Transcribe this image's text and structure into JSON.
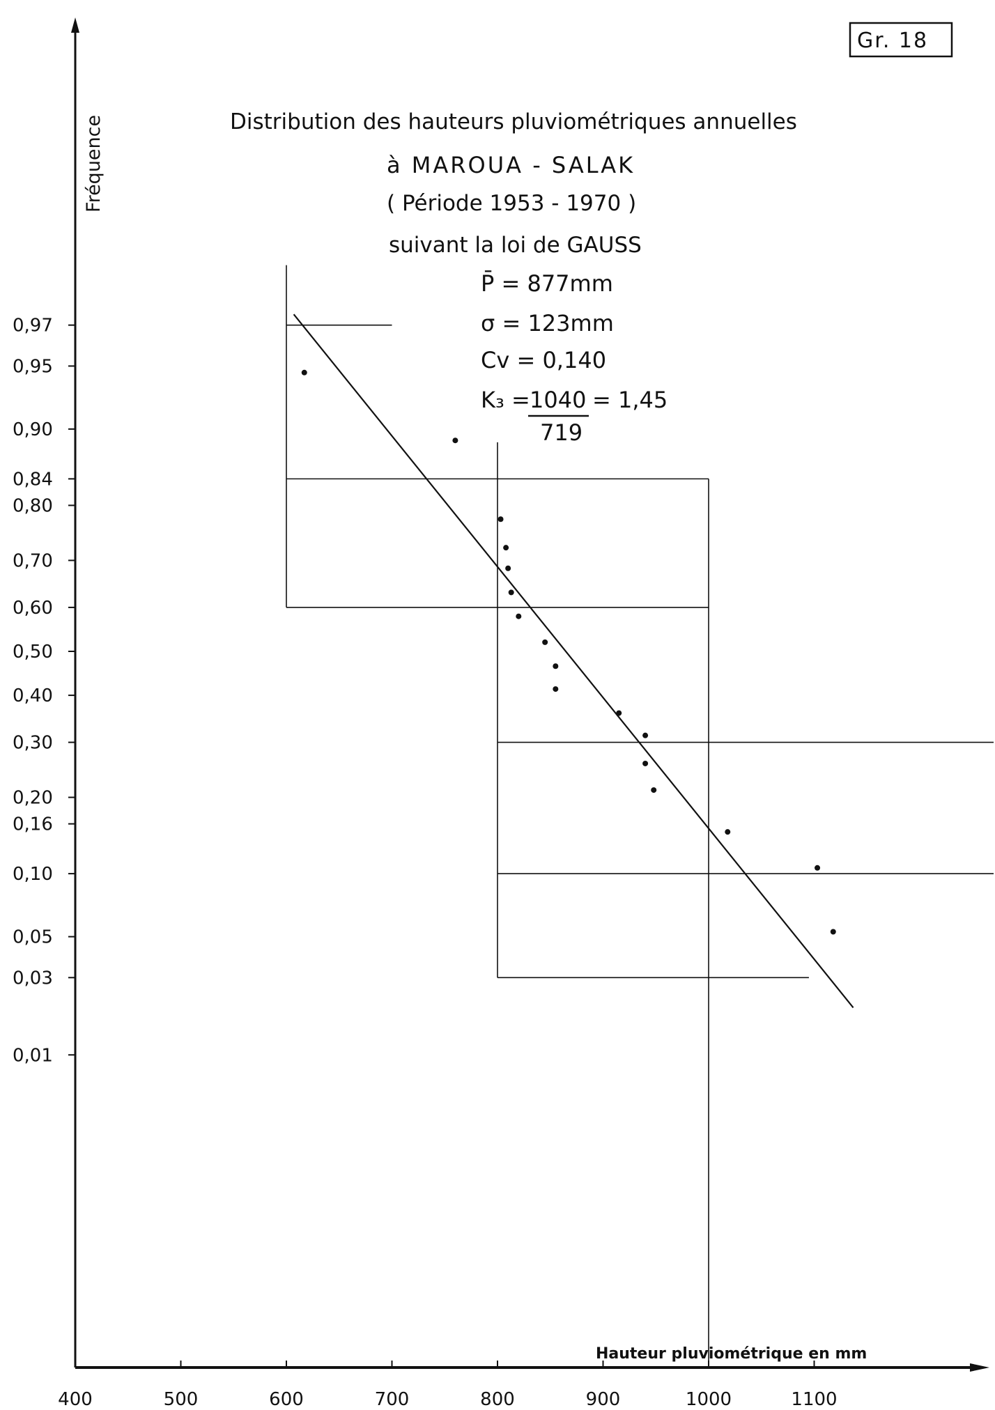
{
  "stamp": "Gr. 18",
  "chart_data": {
    "type": "scatter",
    "title_lines": [
      "Distribution des hauteurs pluviométriques annuelles",
      "à MAROUA - SALAK",
      "( Période 1953 - 1970 )",
      "suivant la loi de GAUSS"
    ],
    "stats": {
      "mean": "P̄ = 877mm",
      "sigma": "σ = 123mm",
      "cv": "Cv = 0,140",
      "k3_label": "K₃ =",
      "k3_numerator": "1040",
      "k3_denominator": "719",
      "k3_result": "= 1,45"
    },
    "xlabel": "Hauteur pluviométrique en mm",
    "ylabel": "Fréquence",
    "xlim": [
      400,
      1100
    ],
    "x_ticks": [
      400,
      500,
      600,
      700,
      800,
      900,
      1000,
      1100
    ],
    "x_tick_labels": [
      "400",
      "500",
      "600",
      "700",
      "800",
      "900",
      "1000",
      "1100"
    ],
    "y_scale": "gaussian-probability",
    "y_ticks": [
      0.97,
      0.95,
      0.9,
      0.84,
      0.8,
      0.7,
      0.6,
      0.5,
      0.4,
      0.3,
      0.2,
      0.16,
      0.1,
      0.05,
      0.03,
      0.01
    ],
    "y_tick_labels": [
      "0,97",
      "0,95",
      "0,90",
      "0,84",
      "0,80",
      "0,70",
      "0,60",
      "0,50",
      "0,40",
      "0,30",
      "0,20",
      "0,16",
      "0,10",
      "0,05",
      "0,03",
      "0,01"
    ],
    "grid": false,
    "points": [
      {
        "x": 617,
        "y": 0.946
      },
      {
        "x": 760,
        "y": 0.888
      },
      {
        "x": 803,
        "y": 0.777
      },
      {
        "x": 808,
        "y": 0.725
      },
      {
        "x": 810,
        "y": 0.684
      },
      {
        "x": 813,
        "y": 0.633
      },
      {
        "x": 820,
        "y": 0.58
      },
      {
        "x": 845,
        "y": 0.521
      },
      {
        "x": 855,
        "y": 0.466
      },
      {
        "x": 855,
        "y": 0.414
      },
      {
        "x": 915,
        "y": 0.361
      },
      {
        "x": 940,
        "y": 0.314
      },
      {
        "x": 940,
        "y": 0.259
      },
      {
        "x": 948,
        "y": 0.212
      },
      {
        "x": 1018,
        "y": 0.149
      },
      {
        "x": 1103,
        "y": 0.106
      },
      {
        "x": 1118,
        "y": 0.053
      }
    ],
    "fit_line": {
      "x": [
        607,
        1137
      ],
      "y": [
        0.974,
        0.02
      ]
    },
    "reference_lines": [
      {
        "y": 0.97,
        "x1": 600,
        "x2": 700
      },
      {
        "y": 0.84,
        "x1": 600,
        "x2": 1000
      },
      {
        "y": 0.6,
        "x1": 600,
        "x2": 1000
      },
      {
        "y": 0.3,
        "x1": 800,
        "x2": 1400
      },
      {
        "y": 0.1,
        "x1": 800,
        "x2": 1400
      },
      {
        "y": 0.03,
        "x1": 800,
        "x2": 1095
      },
      {
        "x": 600,
        "y1": 0.6,
        "y2": 0.987
      },
      {
        "x": 800,
        "y1": 0.03,
        "y2": 0.886
      },
      {
        "x": 1000,
        "y1": 0.001,
        "y2": 0.84
      }
    ]
  }
}
